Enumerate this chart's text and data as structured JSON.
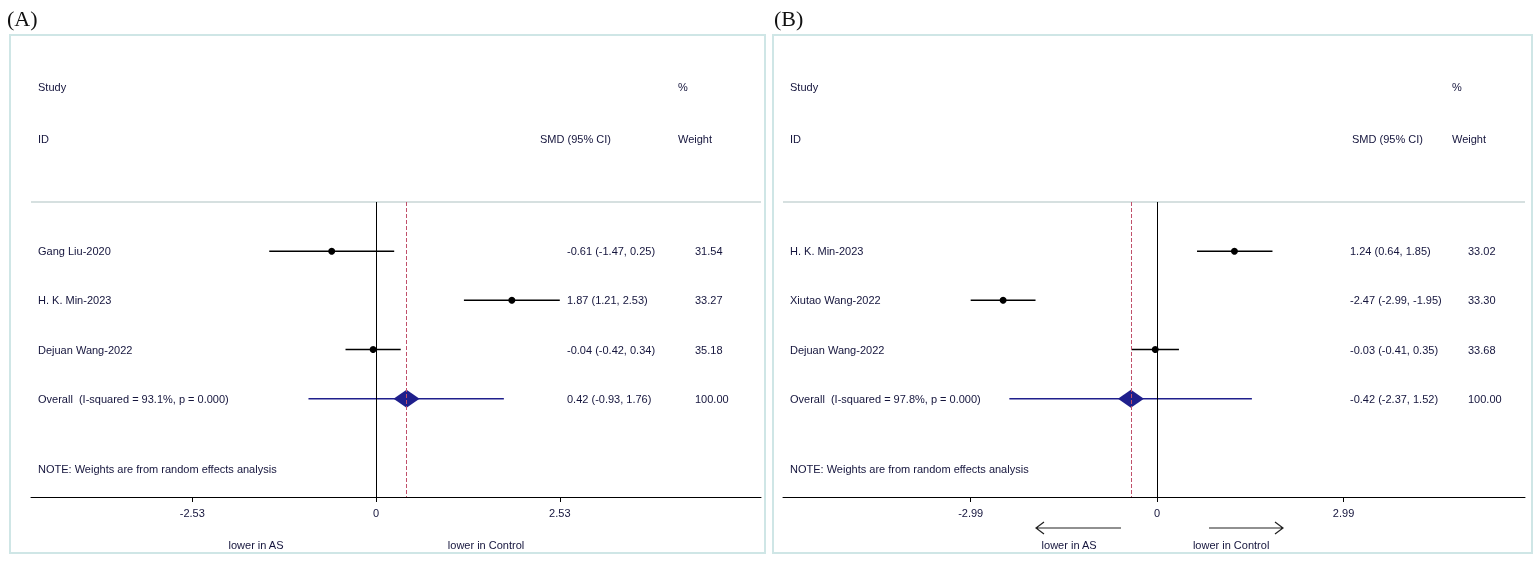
{
  "chart_data": [
    {
      "type": "scatter",
      "title": "(A)",
      "orientation": "horizontal",
      "categories": [
        "Gang Liu-2020",
        "H. K. Min-2023",
        "Dejuan Wang-2022",
        "Overall  (I-squared = 93.1%, p = 0.000)"
      ],
      "series": [
        {
          "color": "#000000",
          "marker": "circle",
          "values": [
            -0.61,
            1.87,
            -0.04,
            null
          ],
          "errors": [
            [
              -1.47,
              0.25
            ],
            [
              1.21,
              2.53
            ],
            [
              -0.42,
              0.34
            ],
            null
          ]
        },
        {
          "color": "#1f1f8c",
          "marker": "diamond",
          "values": [
            null,
            null,
            null,
            0.42
          ],
          "errors": [
            null,
            null,
            null,
            [
              -0.93,
              1.76
            ]
          ]
        }
      ],
      "xlim": [
        -4.75,
        5.3
      ],
      "xticks": [
        -2.53,
        0,
        2.53
      ],
      "ref_lines": [
        {
          "axis": "x",
          "value": 0,
          "color": "#000000"
        },
        {
          "axis": "x",
          "value": 0.42,
          "color": "#c0506a",
          "line_style": "dashed"
        }
      ],
      "annotations": [
        "Study",
        "ID",
        "SMD (95% CI)",
        "%",
        "Weight",
        "-0.61 (-1.47, 0.25)",
        "31.54",
        "1.87 (1.21, 2.53)",
        "33.27",
        "-0.04 (-0.42, 0.34)",
        "35.18",
        "0.42 (-0.93, 1.76)",
        "100.00",
        "NOTE: Weights are from random effects analysis",
        "lower in AS",
        "lower in Control"
      ],
      "grid": false
    },
    {
      "type": "scatter",
      "title": "(B)",
      "orientation": "horizontal",
      "categories": [
        "H. K. Min-2023",
        "Xiutao Wang-2022",
        "Dejuan Wang-2022",
        "Overall  (I-squared = 97.8%, p = 0.000)"
      ],
      "series": [
        {
          "color": "#000000",
          "marker": "circle",
          "values": [
            1.24,
            -2.47,
            -0.03,
            null
          ],
          "errors": [
            [
              0.64,
              1.85
            ],
            [
              -2.99,
              -1.95
            ],
            [
              -0.41,
              0.35
            ],
            null
          ]
        },
        {
          "color": "#1f1f8c",
          "marker": "diamond",
          "values": [
            null,
            null,
            null,
            -0.42
          ],
          "errors": [
            null,
            null,
            null,
            [
              -2.37,
              1.52
            ]
          ]
        }
      ],
      "xlim": [
        -6.0,
        5.9
      ],
      "xticks": [
        -2.99,
        0,
        2.99
      ],
      "ref_lines": [
        {
          "axis": "x",
          "value": 0,
          "color": "#000000"
        },
        {
          "axis": "x",
          "value": -0.42,
          "color": "#c0506a",
          "line_style": "dashed"
        }
      ],
      "annotations": [
        "Study",
        "ID",
        "SMD (95% CI)",
        "%",
        "Weight",
        "1.24 (0.64, 1.85)",
        "33.02",
        "-2.47 (-2.99, -1.95)",
        "33.30",
        "-0.03 (-0.41, 0.35)",
        "33.68",
        "-0.42 (-2.37, 1.52)",
        "100.00",
        "NOTE: Weights are from random effects analysis",
        "lower in AS",
        "lower in Control"
      ],
      "grid": false
    }
  ]
}
